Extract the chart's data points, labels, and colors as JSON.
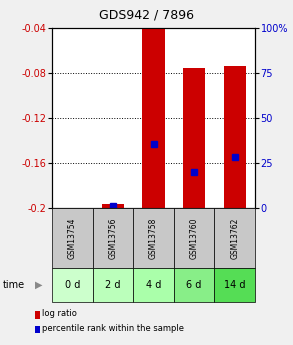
{
  "title": "GDS942 / 7896",
  "samples": [
    "GSM13754",
    "GSM13756",
    "GSM13758",
    "GSM13760",
    "GSM13762"
  ],
  "time_labels": [
    "0 d",
    "2 d",
    "4 d",
    "6 d",
    "14 d"
  ],
  "ymin": -0.2,
  "ymax": -0.04,
  "yticks": [
    -0.2,
    -0.16,
    -0.12,
    -0.08,
    -0.04
  ],
  "right_yticks": [
    0,
    25,
    50,
    75,
    100
  ],
  "right_yticklabels": [
    "0",
    "25",
    "50",
    "75",
    "100%"
  ],
  "log_ratios": [
    -0.2,
    -0.196,
    -0.04,
    -0.076,
    -0.074
  ],
  "percentile_values": [
    null,
    -0.198,
    -0.143,
    -0.168,
    -0.155
  ],
  "bar_width": 0.55,
  "bar_color": "#cc0000",
  "blue_color": "#0000cc",
  "bg_plot": "#ffffff",
  "bg_gsm": "#c8c8c8",
  "time_colors": [
    "#ccffcc",
    "#bbffbb",
    "#aaffaa",
    "#88ee88",
    "#55dd55"
  ],
  "left_axis_color": "#cc0000",
  "right_axis_color": "#0000cc",
  "title_color": "#000000",
  "grid_dotted": [
    -0.08,
    -0.12,
    -0.16
  ],
  "fig_bg": "#f0f0f0"
}
